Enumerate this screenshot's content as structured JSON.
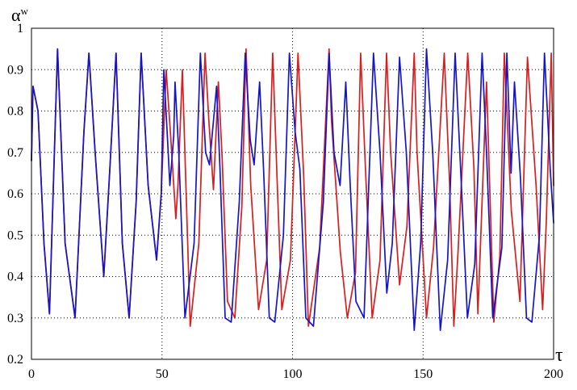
{
  "chart_data": {
    "type": "line",
    "ylabel": "α",
    "ylabel_superscript": "w",
    "xlabel": "τ",
    "xlim": [
      0,
      200
    ],
    "ylim": [
      0.2,
      1.0
    ],
    "x_ticks": [
      0,
      50,
      100,
      150,
      200
    ],
    "x_tick_labels": [
      "0",
      "50",
      "100",
      "150",
      "200"
    ],
    "y_ticks": [
      0.2,
      0.3,
      0.4,
      0.5,
      0.6,
      0.7,
      0.8,
      0.9,
      1.0
    ],
    "y_tick_labels": [
      "0.2",
      "0.3",
      "0.4",
      "0.5",
      "0.6",
      "0.7",
      "0.8",
      "0.9",
      "1"
    ],
    "grid": {
      "horizontal": "dotted",
      "vertical_at": [
        50,
        100,
        150
      ],
      "vertical_style": "dotted"
    },
    "series": [
      {
        "color": "#d81e1e",
        "x": [
          0.0,
          0.6,
          2.5,
          4.8,
          6.9,
          10.0,
          12.9,
          16.7,
          20.1,
          22.0,
          24.4,
          27.7,
          30.1,
          32.4,
          34.8,
          37.4,
          40.1,
          42.0,
          44.7,
          47.9,
          49.7,
          51.6,
          53.2,
          54.0,
          55.3,
          56.1,
          57.8,
          60.8,
          64.1,
          66.5,
          67.9,
          69.7,
          71.6,
          73.0,
          75.1,
          77.9,
          80.6,
          82.2,
          84.0,
          87.0,
          90.1,
          92.4,
          94.0,
          95.9,
          99.2,
          102.1,
          104.3,
          106.1,
          110.4,
          114.0,
          114.9,
          118.3,
          121.0,
          124.1,
          126.1,
          128.0,
          130.5,
          133.5,
          136.0,
          137.6,
          141.0,
          143.8,
          146.6,
          147.7,
          151.3,
          154.0,
          158.1,
          160.2,
          161.8,
          163.4,
          167.1,
          169.5,
          171.0,
          174.3,
          177.1,
          179.4,
          181.1,
          183.8,
          187.1,
          190.0,
          193.3,
          195.8,
          197.2,
          199.1,
          200.0
        ],
        "y": [
          0.68,
          0.86,
          0.8,
          0.48,
          0.31,
          0.95,
          0.48,
          0.3,
          0.75,
          0.94,
          0.7,
          0.4,
          0.67,
          0.94,
          0.48,
          0.3,
          0.58,
          0.94,
          0.62,
          0.44,
          0.6,
          0.9,
          0.75,
          0.67,
          0.54,
          0.62,
          0.9,
          0.28,
          0.48,
          0.94,
          0.78,
          0.61,
          0.87,
          0.69,
          0.34,
          0.3,
          0.57,
          0.95,
          0.62,
          0.32,
          0.44,
          0.94,
          0.65,
          0.32,
          0.44,
          0.94,
          0.64,
          0.28,
          0.47,
          0.95,
          0.78,
          0.46,
          0.3,
          0.41,
          0.94,
          0.65,
          0.3,
          0.44,
          0.94,
          0.7,
          0.38,
          0.52,
          0.94,
          0.7,
          0.3,
          0.47,
          0.94,
          0.62,
          0.28,
          0.46,
          0.94,
          0.66,
          0.31,
          0.87,
          0.29,
          0.45,
          0.94,
          0.56,
          0.34,
          0.93,
          0.62,
          0.32,
          0.53,
          0.94,
          0.62
        ],
        "points": [
          [
            0.0,
            0.68
          ],
          [
            0.6,
            0.86
          ],
          [
            2.5,
            0.8
          ],
          [
            4.8,
            0.48
          ],
          [
            6.9,
            0.31
          ],
          [
            10.0,
            0.95
          ],
          [
            12.9,
            0.48
          ],
          [
            16.7,
            0.3
          ],
          [
            20.1,
            0.75
          ],
          [
            22.0,
            0.94
          ],
          [
            24.4,
            0.7
          ],
          [
            27.7,
            0.4
          ],
          [
            30.1,
            0.67
          ],
          [
            32.4,
            0.94
          ],
          [
            34.8,
            0.48
          ],
          [
            37.4,
            0.3
          ],
          [
            40.1,
            0.58
          ],
          [
            42.0,
            0.94
          ],
          [
            44.7,
            0.62
          ],
          [
            47.9,
            0.44
          ],
          [
            49.7,
            0.6
          ],
          [
            51.6,
            0.9
          ],
          [
            53.2,
            0.75
          ],
          [
            54.0,
            0.67
          ],
          [
            55.3,
            0.54
          ],
          [
            56.1,
            0.62
          ],
          [
            57.8,
            0.9
          ],
          [
            60.8,
            0.28
          ],
          [
            64.1,
            0.48
          ],
          [
            66.5,
            0.94
          ],
          [
            67.9,
            0.78
          ],
          [
            69.7,
            0.61
          ],
          [
            71.6,
            0.87
          ],
          [
            73.0,
            0.69
          ],
          [
            75.1,
            0.34
          ],
          [
            77.9,
            0.3
          ],
          [
            80.6,
            0.57
          ],
          [
            82.2,
            0.95
          ],
          [
            84.0,
            0.62
          ],
          [
            87.0,
            0.32
          ],
          [
            90.1,
            0.44
          ],
          [
            92.4,
            0.94
          ],
          [
            94.0,
            0.65
          ],
          [
            95.9,
            0.32
          ],
          [
            99.2,
            0.44
          ],
          [
            102.1,
            0.94
          ],
          [
            104.3,
            0.64
          ],
          [
            106.1,
            0.28
          ],
          [
            110.4,
            0.47
          ],
          [
            114.0,
            0.95
          ],
          [
            114.9,
            0.78
          ],
          [
            118.3,
            0.46
          ],
          [
            121.0,
            0.3
          ],
          [
            124.1,
            0.41
          ],
          [
            126.1,
            0.94
          ],
          [
            128.0,
            0.65
          ],
          [
            130.5,
            0.3
          ],
          [
            133.5,
            0.44
          ],
          [
            136.0,
            0.94
          ],
          [
            137.6,
            0.7
          ],
          [
            141.0,
            0.38
          ],
          [
            143.8,
            0.52
          ],
          [
            146.6,
            0.94
          ],
          [
            147.7,
            0.7
          ],
          [
            151.3,
            0.3
          ],
          [
            154.0,
            0.47
          ],
          [
            158.1,
            0.94
          ],
          [
            160.2,
            0.62
          ],
          [
            161.8,
            0.28
          ],
          [
            163.4,
            0.46
          ],
          [
            167.1,
            0.94
          ],
          [
            169.5,
            0.66
          ],
          [
            171.0,
            0.31
          ],
          [
            174.3,
            0.87
          ],
          [
            177.1,
            0.29
          ],
          [
            179.4,
            0.45
          ],
          [
            181.1,
            0.94
          ],
          [
            183.8,
            0.56
          ],
          [
            187.1,
            0.34
          ],
          [
            190.0,
            0.93
          ],
          [
            193.3,
            0.62
          ],
          [
            195.8,
            0.32
          ],
          [
            197.2,
            0.53
          ],
          [
            199.1,
            0.94
          ],
          [
            200.0,
            0.62
          ]
        ]
      },
      {
        "color": "#1515c8",
        "points": [
          [
            0.0,
            0.68
          ],
          [
            0.6,
            0.86
          ],
          [
            2.5,
            0.8
          ],
          [
            4.8,
            0.48
          ],
          [
            6.9,
            0.31
          ],
          [
            10.0,
            0.95
          ],
          [
            12.9,
            0.48
          ],
          [
            16.7,
            0.3
          ],
          [
            20.1,
            0.75
          ],
          [
            22.0,
            0.94
          ],
          [
            24.4,
            0.7
          ],
          [
            27.7,
            0.4
          ],
          [
            30.1,
            0.67
          ],
          [
            32.4,
            0.94
          ],
          [
            34.8,
            0.48
          ],
          [
            37.4,
            0.3
          ],
          [
            40.1,
            0.58
          ],
          [
            42.0,
            0.94
          ],
          [
            44.7,
            0.62
          ],
          [
            47.9,
            0.44
          ],
          [
            49.7,
            0.6
          ],
          [
            50.7,
            0.9
          ],
          [
            52.2,
            0.72
          ],
          [
            53.0,
            0.62
          ],
          [
            54.5,
            0.74
          ],
          [
            55.0,
            0.87
          ],
          [
            56.4,
            0.7
          ],
          [
            58.8,
            0.3
          ],
          [
            62.3,
            0.48
          ],
          [
            64.7,
            0.94
          ],
          [
            66.7,
            0.7
          ],
          [
            68.2,
            0.67
          ],
          [
            70.9,
            0.86
          ],
          [
            72.2,
            0.66
          ],
          [
            74.2,
            0.3
          ],
          [
            76.5,
            0.29
          ],
          [
            79.6,
            0.58
          ],
          [
            81.9,
            0.94
          ],
          [
            83.8,
            0.73
          ],
          [
            85.3,
            0.67
          ],
          [
            87.4,
            0.87
          ],
          [
            88.9,
            0.66
          ],
          [
            91.1,
            0.3
          ],
          [
            93.2,
            0.29
          ],
          [
            96.5,
            0.5
          ],
          [
            98.8,
            0.94
          ],
          [
            101.0,
            0.75
          ],
          [
            102.8,
            0.66
          ],
          [
            105.1,
            0.3
          ],
          [
            108.0,
            0.28
          ],
          [
            111.8,
            0.58
          ],
          [
            114.0,
            0.94
          ],
          [
            115.9,
            0.7
          ],
          [
            118.2,
            0.62
          ],
          [
            120.4,
            0.87
          ],
          [
            122.1,
            0.62
          ],
          [
            124.3,
            0.34
          ],
          [
            127.4,
            0.3
          ],
          [
            131.0,
            0.94
          ],
          [
            133.5,
            0.7
          ],
          [
            136.1,
            0.36
          ],
          [
            138.2,
            0.48
          ],
          [
            141.0,
            0.93
          ],
          [
            143.6,
            0.7
          ],
          [
            146.6,
            0.27
          ],
          [
            149.1,
            0.48
          ],
          [
            151.3,
            0.95
          ],
          [
            153.7,
            0.7
          ],
          [
            156.6,
            0.27
          ],
          [
            159.4,
            0.44
          ],
          [
            162.3,
            0.94
          ],
          [
            164.6,
            0.63
          ],
          [
            167.0,
            0.3
          ],
          [
            169.8,
            0.43
          ],
          [
            172.6,
            0.94
          ],
          [
            174.3,
            0.7
          ],
          [
            176.7,
            0.3
          ],
          [
            180.2,
            0.47
          ],
          [
            182.1,
            0.94
          ],
          [
            183.7,
            0.65
          ],
          [
            185.0,
            0.87
          ],
          [
            187.3,
            0.64
          ],
          [
            189.6,
            0.3
          ],
          [
            191.7,
            0.29
          ],
          [
            194.6,
            0.5
          ],
          [
            196.5,
            0.94
          ],
          [
            198.7,
            0.66
          ],
          [
            200.0,
            0.53
          ]
        ]
      }
    ]
  }
}
